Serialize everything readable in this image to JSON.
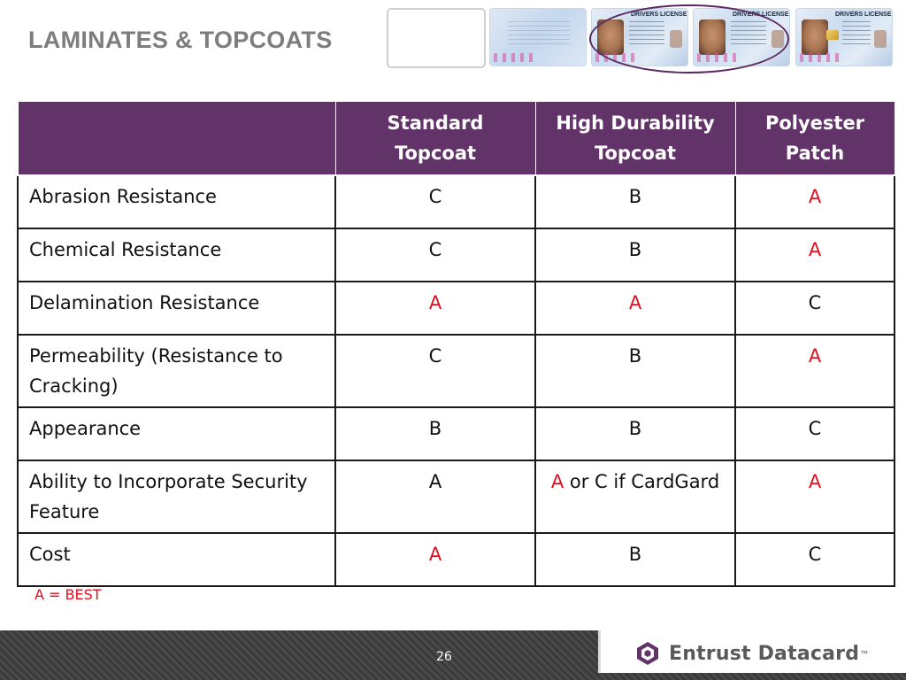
{
  "slide": {
    "title": "LAMINATES & TOPCOATS",
    "page_number": "26",
    "legend": "A = BEST"
  },
  "cards": {
    "header_text": "DRIVERS LICENSE",
    "highlight_color": "#5b2a63"
  },
  "table": {
    "headers": [
      "",
      "Standard Topcoat",
      "High Durability Topcoat",
      "Polyester Patch"
    ],
    "rows": [
      {
        "label": "Abrasion Resistance",
        "values": [
          "C",
          "B",
          "A"
        ]
      },
      {
        "label": "Chemical Resistance",
        "values": [
          "C",
          "B",
          "A"
        ]
      },
      {
        "label": "Delamination Resistance",
        "values": [
          "A",
          "A",
          "C"
        ]
      },
      {
        "label": "Permeability (Resistance to Cracking)",
        "values": [
          "C",
          "B",
          "A"
        ]
      },
      {
        "label": "Appearance",
        "values": [
          "B",
          "B",
          "C"
        ]
      },
      {
        "label": "Ability to Incorporate Security Feature",
        "values": [
          "A",
          "A or C if CardGard",
          "A"
        ]
      },
      {
        "label": "Cost",
        "values": [
          "A",
          "B",
          "C"
        ]
      }
    ],
    "red_cells": [
      [
        0,
        2
      ],
      [
        1,
        2
      ],
      [
        2,
        0
      ],
      [
        2,
        1
      ],
      [
        3,
        2
      ],
      [
        5,
        2
      ],
      [
        6,
        0
      ]
    ],
    "red_prefix_cells": [
      [
        5,
        1,
        "A"
      ]
    ],
    "header_color": "#623369",
    "best_color": "#e00f1f"
  },
  "brand": {
    "name": "Entrust Datacard",
    "trademark": "™",
    "icon": "hexagon-logo-icon",
    "color": "#623369"
  }
}
